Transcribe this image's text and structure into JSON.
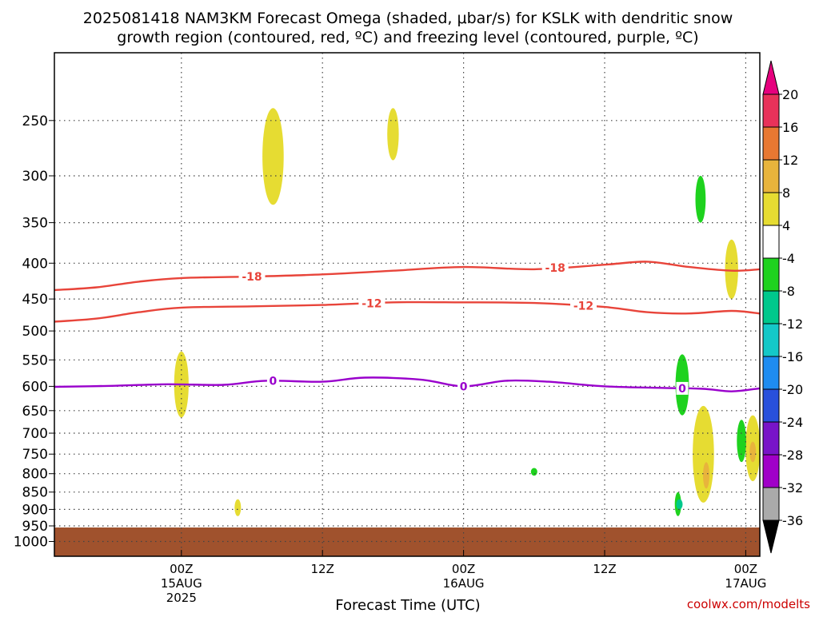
{
  "title_line1": "2025081418 NAM3KM Forecast Omega (shaded, μbar/s) for KSLK with dendritic snow",
  "title_line2": "growth region (contoured, red, ºC) and freezing level (contoured, purple, ºC)",
  "xlabel": "Forecast Time (UTC)",
  "watermark": "coolwx.com/modelts",
  "colors": {
    "terrain": "#a0522d",
    "snow_growth_contour": "#e8443a",
    "freezing_contour": "#9900cc",
    "grid": "#444444"
  },
  "chart_data": {
    "type": "contour",
    "x_range_hours": [
      -9,
      41
    ],
    "x_ticks": [
      {
        "hour": 0,
        "lines": [
          "00Z",
          "15AUG",
          "2025"
        ]
      },
      {
        "hour": 10,
        "lines": [
          "12Z"
        ]
      },
      {
        "hour": 20,
        "lines": [
          "00Z",
          "16AUG"
        ]
      },
      {
        "hour": 30,
        "lines": [
          "12Z"
        ]
      },
      {
        "hour": 40,
        "lines": [
          "00Z",
          "17AUG"
        ]
      }
    ],
    "y_axis_hpa": {
      "scale": "log",
      "range": [
        1050,
        200
      ],
      "ticks": [
        250,
        300,
        350,
        400,
        450,
        500,
        550,
        600,
        650,
        700,
        750,
        800,
        850,
        900,
        950,
        1000
      ]
    },
    "surface_pressure_hpa": 955,
    "contour_lines": [
      {
        "level": -18,
        "label": "-18",
        "color": "#e8443a",
        "label_hours": [
          5,
          26.5
        ],
        "points": [
          [
            -9,
            437
          ],
          [
            -6,
            433
          ],
          [
            -3,
            425
          ],
          [
            0,
            420
          ],
          [
            5,
            418
          ],
          [
            10,
            415
          ],
          [
            15,
            410
          ],
          [
            20,
            405
          ],
          [
            25,
            408
          ],
          [
            30,
            402
          ],
          [
            33,
            398
          ],
          [
            36,
            405
          ],
          [
            39,
            410
          ],
          [
            41,
            408
          ]
        ]
      },
      {
        "level": -12,
        "label": "-12",
        "color": "#e8443a",
        "label_hours": [
          13.5,
          28.5
        ],
        "points": [
          [
            -9,
            485
          ],
          [
            -6,
            480
          ],
          [
            -3,
            470
          ],
          [
            0,
            463
          ],
          [
            5,
            461
          ],
          [
            10,
            459
          ],
          [
            15,
            455
          ],
          [
            20,
            455
          ],
          [
            25,
            456
          ],
          [
            30,
            462
          ],
          [
            33,
            470
          ],
          [
            36,
            472
          ],
          [
            39,
            468
          ],
          [
            41,
            472
          ]
        ]
      },
      {
        "level": 0,
        "label": "0",
        "color": "#9900cc",
        "label_hours": [
          6.5,
          20,
          35.5
        ],
        "points": [
          [
            -9,
            601
          ],
          [
            -5,
            599
          ],
          [
            -1,
            596
          ],
          [
            3,
            597
          ],
          [
            6,
            589
          ],
          [
            10,
            591
          ],
          [
            13,
            583
          ],
          [
            17,
            587
          ],
          [
            20,
            600
          ],
          [
            23,
            589
          ],
          [
            26,
            591
          ],
          [
            30,
            600
          ],
          [
            34,
            603
          ],
          [
            37,
            605
          ],
          [
            39,
            610
          ],
          [
            41,
            604
          ]
        ]
      }
    ],
    "omega_shading": [
      {
        "level_range": [
          4,
          8
        ],
        "color": "#e6dc32",
        "approx_hour": 6.5,
        "approx_hpa_range": [
          240,
          330
        ]
      },
      {
        "level_range": [
          4,
          8
        ],
        "color": "#e6dc32",
        "approx_hour": 15,
        "approx_hpa_range": [
          240,
          285
        ]
      },
      {
        "level_range": [
          4,
          8
        ],
        "color": "#e6dc32",
        "approx_hour": 0,
        "approx_hpa_range": [
          535,
          665
        ]
      },
      {
        "level_range": [
          4,
          8
        ],
        "color": "#e6dc32",
        "approx_hour": 4,
        "approx_hpa_range": [
          870,
          920
        ]
      },
      {
        "level_range": [
          4,
          8
        ],
        "color": "#e6dc32",
        "approx_hour": 39,
        "approx_hpa_range": [
          370,
          450
        ]
      },
      {
        "level_range": [
          4,
          8
        ],
        "color": "#e6dc32",
        "approx_hour": 37,
        "approx_hpa_range": [
          640,
          880
        ]
      },
      {
        "level_range": [
          8,
          12
        ],
        "color": "#e8b43c",
        "approx_hour": 37.2,
        "approx_hpa_range": [
          770,
          840
        ]
      },
      {
        "level_range": [
          4,
          8
        ],
        "color": "#e6dc32",
        "approx_hour": 40.5,
        "approx_hpa_range": [
          660,
          820
        ]
      },
      {
        "level_range": [
          8,
          12
        ],
        "color": "#e8b43c",
        "approx_hour": 40.5,
        "approx_hpa_range": [
          720,
          770
        ]
      },
      {
        "level_range": [
          -8,
          -4
        ],
        "color": "#1ed21e",
        "approx_hour": 36.8,
        "approx_hpa_range": [
          300,
          350
        ]
      },
      {
        "level_range": [
          -8,
          -4
        ],
        "color": "#1ed21e",
        "approx_hour": 35.5,
        "approx_hpa_range": [
          540,
          660
        ]
      },
      {
        "level_range": [
          -8,
          -4
        ],
        "color": "#1ed21e",
        "approx_hour": 25,
        "approx_hpa_range": [
          785,
          805
        ]
      },
      {
        "level_range": [
          -8,
          -4
        ],
        "color": "#1ed21e",
        "approx_hour": 35.2,
        "approx_hpa_range": [
          850,
          920
        ]
      },
      {
        "level_range": [
          -12,
          -8
        ],
        "color": "#00c88c",
        "approx_hour": 35.3,
        "approx_hpa_range": [
          870,
          900
        ]
      },
      {
        "level_range": [
          -8,
          -4
        ],
        "color": "#1ed21e",
        "approx_hour": 39.7,
        "approx_hpa_range": [
          670,
          770
        ]
      }
    ],
    "colorbar": {
      "labels": [
        "20",
        "16",
        "12",
        "8",
        "4",
        "-4",
        "-8",
        "-12",
        "-16",
        "-20",
        "-24",
        "-28",
        "-32",
        "-36"
      ],
      "colors": [
        "#e8325a",
        "#e87832",
        "#e8b43c",
        "#e6dc32",
        "#ffffff",
        "#1ed21e",
        "#00c88c",
        "#14c8c8",
        "#1e8cf0",
        "#2850dc",
        "#7814c8",
        "#a000c8",
        "#aaaaaa"
      ],
      "over_color": "#e6007e",
      "under_color": "#000000"
    }
  }
}
